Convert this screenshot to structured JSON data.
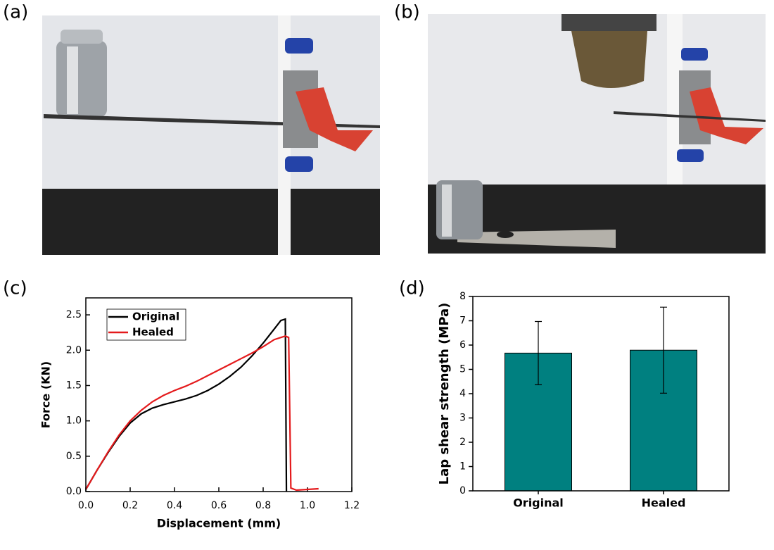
{
  "panel_labels": [
    "(a)",
    "(b)",
    "(c)",
    "(d)"
  ],
  "chart_data": [
    {
      "type": "line",
      "x_label": "Displacement (mm)",
      "y_label": "Force (KN)",
      "xlim": [
        0,
        1.2
      ],
      "xticks": [
        {
          "value": 0,
          "label": "0.0"
        },
        0.2,
        0.4,
        0.6,
        0.8,
        {
          "value": 1,
          "label": "1.0"
        },
        1.2
      ],
      "ylim": [
        0,
        2.74
      ],
      "yticks": [
        {
          "value": 0,
          "label": "0.0"
        },
        0.5,
        {
          "value": 1,
          "label": "1.0"
        },
        1.5,
        {
          "value": 2,
          "label": "2.0"
        },
        2.5
      ],
      "legend": "upper left",
      "series": [
        {
          "name": "Original",
          "color": "#000000",
          "x": [
            0,
            0.05,
            0.1,
            0.15,
            0.2,
            0.25,
            0.3,
            0.35,
            0.4,
            0.45,
            0.5,
            0.55,
            0.6,
            0.65,
            0.7,
            0.75,
            0.8,
            0.85,
            0.88,
            0.9,
            0.905
          ],
          "values": [
            0.03,
            0.3,
            0.55,
            0.78,
            0.97,
            1.1,
            1.18,
            1.23,
            1.27,
            1.31,
            1.36,
            1.43,
            1.52,
            1.63,
            1.76,
            1.92,
            2.1,
            2.3,
            2.42,
            2.44,
            0
          ]
        },
        {
          "name": "Healed",
          "color": "#e41a1c",
          "x": [
            0,
            0.05,
            0.1,
            0.15,
            0.2,
            0.25,
            0.3,
            0.35,
            0.4,
            0.45,
            0.5,
            0.55,
            0.6,
            0.65,
            0.7,
            0.75,
            0.8,
            0.85,
            0.9,
            0.915,
            0.925,
            0.95,
            1.0,
            1.05
          ],
          "values": [
            0.03,
            0.3,
            0.56,
            0.8,
            1.0,
            1.15,
            1.27,
            1.36,
            1.43,
            1.49,
            1.56,
            1.64,
            1.72,
            1.8,
            1.88,
            1.96,
            2.05,
            2.15,
            2.2,
            2.18,
            0.05,
            0.02,
            0.03,
            0.04
          ]
        }
      ]
    },
    {
      "type": "bar",
      "y_label": "Lap shear strength (MPa)",
      "categories": [
        "Original",
        "Healed"
      ],
      "values": [
        5.67,
        5.79
      ],
      "errors": [
        1.3,
        1.77
      ],
      "color": "#008080",
      "ylim": [
        0,
        8
      ],
      "yticks": [
        0,
        1,
        2,
        3,
        4,
        5,
        6,
        7,
        8
      ]
    }
  ]
}
